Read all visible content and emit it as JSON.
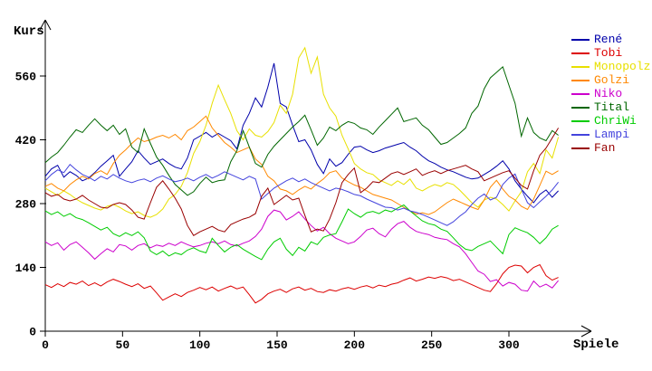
{
  "chart_data": {
    "type": "line",
    "title": "",
    "ylabel": "Kurs",
    "xlabel": "Spiele",
    "x_ticks": [
      0,
      50,
      100,
      150,
      200,
      250,
      300
    ],
    "y_ticks": [
      0,
      140,
      280,
      420,
      560
    ],
    "xlim": [
      0,
      354
    ],
    "ylim": [
      0,
      686
    ],
    "grid": false,
    "legend_position": "right",
    "x_step": 4,
    "series": [
      {
        "name": "René",
        "color": "#0000AA",
        "values": [
          340,
          356,
          364,
          338,
          350,
          342,
          330,
          336,
          348,
          362,
          374,
          386,
          340,
          356,
          372,
          396,
          380,
          366,
          372,
          378,
          368,
          360,
          356,
          380,
          420,
          428,
          436,
          426,
          434,
          426,
          418,
          400,
          452,
          478,
          512,
          492,
          536,
          588,
          500,
          492,
          452,
          416,
          420,
          398,
          366,
          346,
          378,
          362,
          370,
          388,
          404,
          406,
          398,
          392,
          396,
          402,
          406,
          410,
          414,
          404,
          396,
          384,
          374,
          368,
          360,
          354,
          350,
          344,
          338,
          334,
          336,
          344,
          352,
          362,
          374,
          356,
          330,
          312,
          296,
          282,
          300,
          310,
          294,
          308
        ]
      },
      {
        "name": "Tobi",
        "color": "#DD0000",
        "values": [
          102,
          96,
          104,
          98,
          107,
          103,
          110,
          100,
          106,
          99,
          108,
          114,
          109,
          103,
          98,
          104,
          94,
          99,
          84,
          68,
          75,
          82,
          76,
          85,
          90,
          96,
          91,
          97,
          88,
          94,
          99,
          93,
          97,
          80,
          62,
          70,
          82,
          88,
          92,
          85,
          93,
          97,
          90,
          94,
          87,
          85,
          91,
          88,
          93,
          96,
          92,
          97,
          100,
          95,
          101,
          98,
          103,
          106,
          112,
          117,
          110,
          114,
          119,
          116,
          120,
          117,
          111,
          114,
          108,
          102,
          96,
          90,
          87,
          104,
          126,
          140,
          145,
          143,
          128,
          140,
          146,
          122,
          112,
          118
        ]
      },
      {
        "name": "Monopolz",
        "color": "#E8E000",
        "values": [
          314,
          306,
          298,
          308,
          300,
          290,
          282,
          276,
          270,
          266,
          274,
          278,
          272,
          264,
          258,
          262,
          254,
          250,
          256,
          268,
          290,
          300,
          318,
          348,
          390,
          416,
          452,
          500,
          540,
          508,
          478,
          440,
          420,
          444,
          430,
          426,
          438,
          458,
          496,
          478,
          520,
          600,
          622,
          566,
          602,
          520,
          490,
          472,
          430,
          400,
          368,
          356,
          348,
          344,
          332,
          326,
          320,
          330,
          322,
          334,
          314,
          308,
          316,
          322,
          318,
          326,
          322,
          310,
          296,
          282,
          272,
          288,
          294,
          290,
          278,
          264,
          286,
          306,
          350,
          368,
          346,
          398,
          380,
          426
        ]
      },
      {
        "name": "Golzi",
        "color": "#FF8800",
        "values": [
          318,
          324,
          314,
          308,
          322,
          332,
          340,
          334,
          346,
          352,
          344,
          368,
          386,
          398,
          412,
          424,
          416,
          420,
          426,
          430,
          424,
          432,
          420,
          440,
          448,
          460,
          472,
          446,
          430,
          414,
          404,
          392,
          398,
          404,
          378,
          366,
          340,
          330,
          312,
          308,
          300,
          310,
          318,
          312,
          324,
          334,
          348,
          352,
          336,
          328,
          321,
          316,
          308,
          300,
          296,
          292,
          288,
          280,
          272,
          264,
          257,
          260,
          256,
          262,
          272,
          282,
          290,
          284,
          278,
          272,
          267,
          288,
          316,
          331,
          312,
          296,
          288,
          274,
          267,
          290,
          320,
          351,
          344,
          352
        ]
      },
      {
        "name": "Niko",
        "color": "#CC00CC",
        "values": [
          196,
          188,
          194,
          178,
          190,
          196,
          184,
          172,
          158,
          170,
          181,
          174,
          190,
          187,
          178,
          188,
          192,
          183,
          189,
          186,
          193,
          188,
          196,
          190,
          185,
          188,
          193,
          196,
          192,
          198,
          190,
          187,
          193,
          198,
          208,
          224,
          252,
          266,
          262,
          244,
          252,
          262,
          246,
          232,
          220,
          228,
          214,
          204,
          198,
          192,
          196,
          208,
          222,
          226,
          214,
          207,
          224,
          236,
          241,
          228,
          219,
          215,
          212,
          206,
          203,
          201,
          192,
          185,
          170,
          151,
          132,
          125,
          109,
          113,
          99,
          107,
          103,
          90,
          88,
          110,
          97,
          103,
          95,
          111
        ]
      },
      {
        "name": "Tital",
        "color": "#006600",
        "values": [
          370,
          382,
          392,
          408,
          426,
          442,
          436,
          452,
          466,
          452,
          440,
          452,
          432,
          444,
          404,
          392,
          444,
          412,
          382,
          364,
          342,
          322,
          310,
          298,
          306,
          324,
          338,
          326,
          330,
          332,
          372,
          396,
          440,
          404,
          368,
          360,
          388,
          406,
          420,
          434,
          448,
          460,
          474,
          442,
          408,
          424,
          448,
          440,
          452,
          460,
          456,
          446,
          442,
          432,
          448,
          462,
          476,
          490,
          460,
          464,
          468,
          452,
          442,
          426,
          410,
          414,
          424,
          434,
          446,
          478,
          494,
          532,
          556,
          568,
          580,
          540,
          500,
          428,
          468,
          436,
          424,
          418,
          440,
          430
        ]
      },
      {
        "name": "ChriWi",
        "color": "#00CC00",
        "values": [
          264,
          256,
          262,
          252,
          258,
          249,
          245,
          238,
          230,
          222,
          228,
          214,
          208,
          216,
          210,
          218,
          205,
          176,
          168,
          176,
          165,
          172,
          168,
          178,
          183,
          176,
          172,
          204,
          188,
          174,
          184,
          190,
          180,
          172,
          164,
          157,
          180,
          196,
          204,
          180,
          166,
          184,
          176,
          196,
          190,
          206,
          211,
          214,
          240,
          268,
          258,
          250,
          260,
          263,
          258,
          266,
          262,
          270,
          277,
          264,
          253,
          242,
          236,
          233,
          224,
          219,
          205,
          190,
          180,
          177,
          186,
          192,
          198,
          184,
          170,
          212,
          227,
          221,
          216,
          206,
          192,
          205,
          224,
          232
        ]
      },
      {
        "name": "Lampi",
        "color": "#4444DD",
        "values": [
          330,
          344,
          354,
          348,
          366,
          354,
          344,
          338,
          330,
          340,
          334,
          344,
          336,
          330,
          326,
          331,
          334,
          328,
          336,
          341,
          334,
          328,
          331,
          336,
          330,
          338,
          344,
          336,
          342,
          350,
          344,
          338,
          332,
          340,
          334,
          290,
          302,
          314,
          322,
          330,
          336,
          328,
          334,
          326,
          320,
          314,
          308,
          314,
          311,
          306,
          300,
          297,
          290,
          284,
          278,
          272,
          271,
          266,
          270,
          264,
          261,
          256,
          250,
          244,
          238,
          232,
          240,
          252,
          262,
          278,
          292,
          301,
          288,
          294,
          322,
          336,
          345,
          312,
          282,
          271,
          284,
          296,
          310,
          327
        ]
      },
      {
        "name": "Fan",
        "color": "#990000",
        "values": [
          304,
          296,
          300,
          290,
          286,
          290,
          298,
          288,
          280,
          272,
          270,
          278,
          282,
          278,
          266,
          250,
          246,
          282,
          316,
          330,
          312,
          292,
          268,
          232,
          210,
          218,
          224,
          230,
          222,
          218,
          234,
          240,
          246,
          250,
          258,
          296,
          314,
          278,
          288,
          298,
          288,
          292,
          254,
          218,
          224,
          220,
          246,
          282,
          326,
          344,
          358,
          304,
          314,
          328,
          326,
          336,
          346,
          350,
          344,
          350,
          356,
          342,
          348,
          352,
          346,
          352,
          356,
          360,
          364,
          356,
          350,
          330,
          336,
          342,
          348,
          352,
          336,
          320,
          312,
          352,
          386,
          402,
          424,
          446
        ]
      }
    ]
  }
}
